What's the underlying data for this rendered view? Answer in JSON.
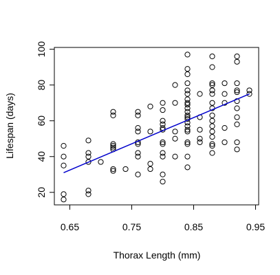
{
  "chart_data": {
    "type": "scatter",
    "title": "",
    "xlabel": "Thorax Length (mm)",
    "ylabel": "Lifespan (days)",
    "xlim": [
      0.625,
      0.955
    ],
    "ylim": [
      13,
      101
    ],
    "x_ticks": [
      0.65,
      0.75,
      0.85,
      0.95
    ],
    "x_tick_labels": [
      "0.65",
      "0.75",
      "0.85",
      "0.95"
    ],
    "y_ticks": [
      20,
      40,
      60,
      80,
      100
    ],
    "y_tick_labels": [
      "20",
      "40",
      "60",
      "80",
      "100"
    ],
    "grid": false,
    "legend": "none",
    "point_color": "#000000",
    "fit_line_color": "#0000cc",
    "points": [
      [
        0.64,
        46
      ],
      [
        0.64,
        40
      ],
      [
        0.64,
        35
      ],
      [
        0.64,
        19
      ],
      [
        0.64,
        16
      ],
      [
        0.68,
        49
      ],
      [
        0.68,
        42
      ],
      [
        0.68,
        40
      ],
      [
        0.68,
        37
      ],
      [
        0.68,
        21
      ],
      [
        0.68,
        19
      ],
      [
        0.7,
        37
      ],
      [
        0.72,
        65
      ],
      [
        0.72,
        63
      ],
      [
        0.72,
        47
      ],
      [
        0.72,
        46
      ],
      [
        0.72,
        45
      ],
      [
        0.72,
        44
      ],
      [
        0.72,
        33
      ],
      [
        0.72,
        32
      ],
      [
        0.74,
        33
      ],
      [
        0.76,
        65
      ],
      [
        0.76,
        63
      ],
      [
        0.76,
        56
      ],
      [
        0.76,
        54
      ],
      [
        0.76,
        48
      ],
      [
        0.76,
        47
      ],
      [
        0.76,
        42
      ],
      [
        0.76,
        40
      ],
      [
        0.76,
        30
      ],
      [
        0.78,
        68
      ],
      [
        0.78,
        54
      ],
      [
        0.78,
        36
      ],
      [
        0.78,
        33
      ],
      [
        0.8,
        70
      ],
      [
        0.8,
        66
      ],
      [
        0.8,
        60
      ],
      [
        0.8,
        58
      ],
      [
        0.8,
        56
      ],
      [
        0.8,
        55
      ],
      [
        0.8,
        48
      ],
      [
        0.8,
        47
      ],
      [
        0.8,
        42
      ],
      [
        0.8,
        40
      ],
      [
        0.8,
        30
      ],
      [
        0.8,
        26
      ],
      [
        0.82,
        80
      ],
      [
        0.82,
        70
      ],
      [
        0.82,
        54
      ],
      [
        0.82,
        50
      ],
      [
        0.82,
        40
      ],
      [
        0.84,
        97
      ],
      [
        0.84,
        89
      ],
      [
        0.84,
        86
      ],
      [
        0.84,
        81
      ],
      [
        0.84,
        77
      ],
      [
        0.84,
        75
      ],
      [
        0.84,
        72
      ],
      [
        0.84,
        70
      ],
      [
        0.84,
        69
      ],
      [
        0.84,
        67
      ],
      [
        0.84,
        65
      ],
      [
        0.84,
        63
      ],
      [
        0.84,
        62
      ],
      [
        0.84,
        61
      ],
      [
        0.84,
        59
      ],
      [
        0.84,
        57
      ],
      [
        0.84,
        55
      ],
      [
        0.84,
        54
      ],
      [
        0.84,
        48
      ],
      [
        0.84,
        47
      ],
      [
        0.84,
        40
      ],
      [
        0.84,
        34
      ],
      [
        0.86,
        75
      ],
      [
        0.86,
        62
      ],
      [
        0.86,
        55
      ],
      [
        0.86,
        50
      ],
      [
        0.86,
        48
      ],
      [
        0.88,
        96
      ],
      [
        0.88,
        90
      ],
      [
        0.88,
        81
      ],
      [
        0.88,
        80
      ],
      [
        0.88,
        77
      ],
      [
        0.88,
        75
      ],
      [
        0.88,
        70
      ],
      [
        0.88,
        67
      ],
      [
        0.88,
        63
      ],
      [
        0.88,
        60
      ],
      [
        0.88,
        57
      ],
      [
        0.88,
        54
      ],
      [
        0.88,
        51
      ],
      [
        0.88,
        47
      ],
      [
        0.88,
        46
      ],
      [
        0.88,
        42
      ],
      [
        0.9,
        81
      ],
      [
        0.9,
        75
      ],
      [
        0.9,
        70
      ],
      [
        0.9,
        56
      ],
      [
        0.9,
        48
      ],
      [
        0.92,
        96
      ],
      [
        0.92,
        93
      ],
      [
        0.92,
        81
      ],
      [
        0.92,
        77
      ],
      [
        0.92,
        76
      ],
      [
        0.92,
        71
      ],
      [
        0.92,
        67
      ],
      [
        0.92,
        62
      ],
      [
        0.92,
        58
      ],
      [
        0.92,
        48
      ],
      [
        0.92,
        44
      ],
      [
        0.94,
        77
      ],
      [
        0.94,
        75
      ]
    ],
    "fit_line": {
      "x": [
        0.64,
        0.94
      ],
      "y": [
        31,
        75
      ]
    }
  }
}
